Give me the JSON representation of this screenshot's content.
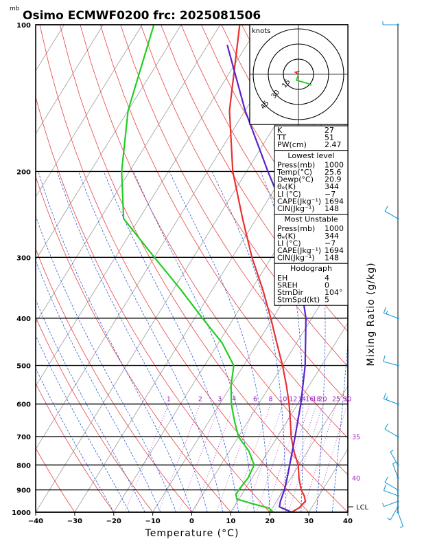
{
  "chart_data": {
    "type": "line",
    "title": "Osimo ECMWF0200  frc: 2025081506",
    "pressure_unit_label": "mb",
    "xlabel": "Temperature (°C)",
    "ylabel_right": "Mixing Ratio (g/kg)",
    "x_ticks": [
      -40,
      -30,
      -20,
      -10,
      0,
      10,
      20,
      30,
      40
    ],
    "xlim": [
      -40,
      40
    ],
    "pressure_levels": [
      100,
      200,
      300,
      400,
      500,
      600,
      700,
      800,
      900,
      1000
    ],
    "ylim_mb": [
      1000,
      100
    ],
    "y_scale": "log",
    "mixing_ratio_labels": [
      "1",
      "2",
      "3",
      "4",
      "6",
      "8",
      "10",
      "12",
      "14",
      "16",
      "18",
      "20",
      "25",
      "30"
    ],
    "mixing_ratio_values": [
      1,
      2,
      3,
      4,
      6,
      8,
      10,
      12,
      14,
      16,
      18,
      20,
      25,
      30
    ],
    "theta_e_labels": [
      "35",
      "40"
    ],
    "lcl_label": "LCL",
    "lcl_pressure_mb": 975,
    "series": [
      {
        "key": "temperature",
        "color": "#e83030",
        "points": [
          [
            1000,
            25.6
          ],
          [
            980,
            26.8
          ],
          [
            950,
            27.4
          ],
          [
            925,
            26.2
          ],
          [
            900,
            24.5
          ],
          [
            850,
            22.0
          ],
          [
            800,
            19.8
          ],
          [
            750,
            16.5
          ],
          [
            700,
            13.5
          ],
          [
            650,
            10.8
          ],
          [
            600,
            7.8
          ],
          [
            550,
            4.2
          ],
          [
            500,
            0.0
          ],
          [
            450,
            -5.0
          ],
          [
            400,
            -10.5
          ],
          [
            350,
            -17.0
          ],
          [
            300,
            -25.0
          ],
          [
            250,
            -33.5
          ],
          [
            200,
            -43.5
          ],
          [
            150,
            -54.0
          ],
          [
            100,
            -65.0
          ]
        ]
      },
      {
        "key": "dewpoint",
        "color": "#22cc22",
        "points": [
          [
            1000,
            20.9
          ],
          [
            980,
            19.0
          ],
          [
            960,
            14.0
          ],
          [
            940,
            9.5
          ],
          [
            920,
            8.5
          ],
          [
            900,
            8.5
          ],
          [
            850,
            9.0
          ],
          [
            800,
            8.5
          ],
          [
            750,
            5.0
          ],
          [
            700,
            0.0
          ],
          [
            650,
            -3.5
          ],
          [
            600,
            -7.0
          ],
          [
            550,
            -10.0
          ],
          [
            500,
            -12.5
          ],
          [
            450,
            -19.0
          ],
          [
            400,
            -28.0
          ],
          [
            350,
            -38.0
          ],
          [
            300,
            -50.0
          ],
          [
            250,
            -64.0
          ],
          [
            200,
            -72.0
          ],
          [
            150,
            -80.0
          ],
          [
            100,
            -87.0
          ]
        ]
      },
      {
        "key": "parcel",
        "color": "#5522cc",
        "points": [
          [
            1000,
            25.6
          ],
          [
            975,
            21.6
          ],
          [
            950,
            21.0
          ],
          [
            900,
            20.2
          ],
          [
            850,
            19.0
          ],
          [
            800,
            17.6
          ],
          [
            700,
            14.5
          ],
          [
            600,
            10.8
          ],
          [
            500,
            5.8
          ],
          [
            400,
            -1.5
          ],
          [
            300,
            -13.5
          ],
          [
            250,
            -22.0
          ],
          [
            200,
            -34.5
          ],
          [
            150,
            -50.0
          ],
          [
            110,
            -65.0
          ]
        ]
      }
    ],
    "hodograph": {
      "units_label": "knots",
      "ring_labels": [
        "15",
        "30",
        "45"
      ],
      "ring_values": [
        15,
        30,
        45
      ],
      "segments": [
        {
          "color": "#ff2020",
          "points": [
            [
              0,
              0
            ],
            [
              -3,
              2
            ],
            [
              1,
              3
            ]
          ]
        },
        {
          "color": "#22cc22",
          "points": [
            [
              0,
              0
            ],
            [
              -2,
              -6
            ],
            [
              9,
              -9
            ],
            [
              13,
              -11
            ]
          ]
        }
      ]
    },
    "wind_barbs": [
      {
        "p": 100,
        "dir": 270,
        "spd": 8
      },
      {
        "p": 250,
        "dir": 300,
        "spd": 12
      },
      {
        "p": 400,
        "dir": 290,
        "spd": 18
      },
      {
        "p": 500,
        "dir": 285,
        "spd": 14
      },
      {
        "p": 600,
        "dir": 290,
        "spd": 15
      },
      {
        "p": 700,
        "dir": 300,
        "spd": 10
      },
      {
        "p": 800,
        "dir": 330,
        "spd": 8
      },
      {
        "p": 850,
        "dir": 340,
        "spd": 7
      },
      {
        "p": 900,
        "dir": 300,
        "spd": 12
      },
      {
        "p": 925,
        "dir": 290,
        "spd": 10
      },
      {
        "p": 950,
        "dir": 250,
        "spd": 8
      },
      {
        "p": 975,
        "dir": 210,
        "spd": 7
      },
      {
        "p": 1000,
        "dir": 160,
        "spd": 5
      }
    ]
  },
  "indices": {
    "top": [
      {
        "label": "K",
        "value": "27"
      },
      {
        "label": "TT",
        "value": "51"
      },
      {
        "label": "PW(cm)",
        "value": "2.47"
      }
    ],
    "lowest_level": {
      "header": "Lowest level",
      "rows": [
        {
          "label": "Press(mb)",
          "value": "1000"
        },
        {
          "label": "Temp(°C)",
          "value": "25.6"
        },
        {
          "label": "Dewp(°C)",
          "value": "20.9"
        },
        {
          "label": "θₑ(K)",
          "value": "344"
        },
        {
          "label": "LI (°C)",
          "value": "−7"
        },
        {
          "label": "CAPE(Jkg⁻¹)",
          "value": "1694"
        },
        {
          "label": "CIN(Jkg⁻¹)",
          "value": "148"
        }
      ]
    },
    "most_unstable": {
      "header": "Most Unstable",
      "rows": [
        {
          "label": "Press(mb)",
          "value": "1000"
        },
        {
          "label": "θₑ(K)",
          "value": "344"
        },
        {
          "label": "LI (°C)",
          "value": "−7"
        },
        {
          "label": "CAPE(Jkg⁻¹)",
          "value": "1694"
        },
        {
          "label": "CIN(Jkg⁻¹)",
          "value": "148"
        }
      ]
    },
    "hodograph_box": {
      "header": "Hodograph",
      "rows": [
        {
          "label": "EH",
          "value": "4"
        },
        {
          "label": "SREH",
          "value": "0"
        },
        {
          "label": "StmDir",
          "value": "104°"
        },
        {
          "label": "StmSpd(kt)",
          "value": "5"
        }
      ]
    }
  }
}
